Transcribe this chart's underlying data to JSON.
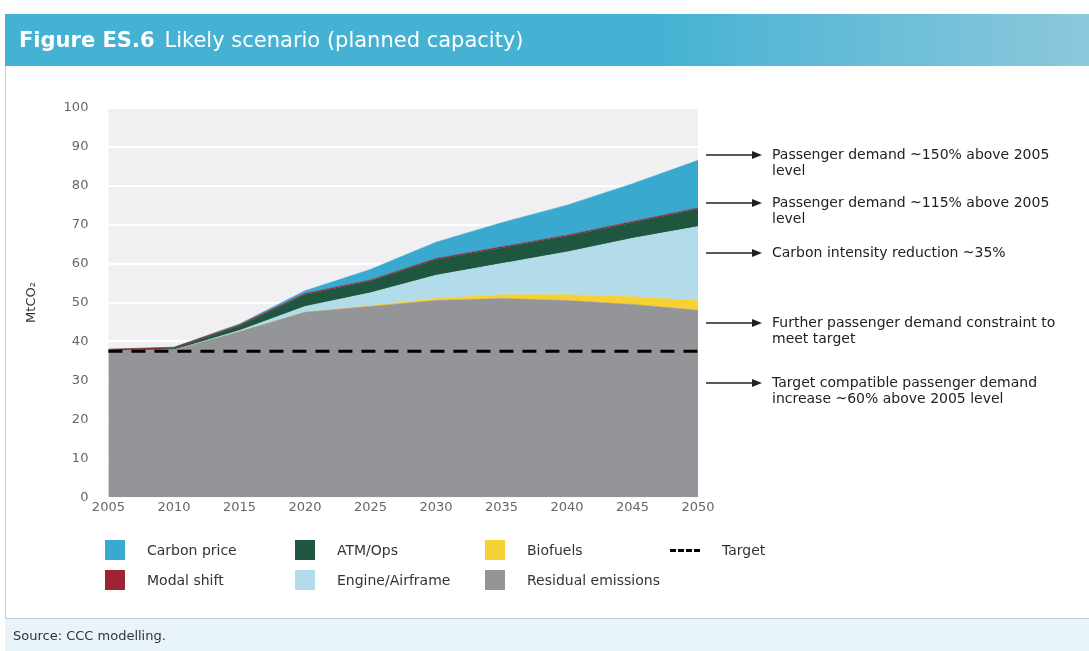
{
  "chart_data": {
    "type": "area",
    "title": "Figure ES.6",
    "subtitle": "Likely scenario (planned capacity)",
    "ylabel": "MtCO₂",
    "stacked": true,
    "x": [
      2005,
      2010,
      2015,
      2020,
      2025,
      2030,
      2035,
      2040,
      2045,
      2050
    ],
    "xlim": [
      2005,
      2050
    ],
    "xticks": [
      2005,
      2010,
      2015,
      2020,
      2025,
      2030,
      2035,
      2040,
      2045,
      2050
    ],
    "ylim": [
      0,
      100
    ],
    "yticks": [
      0,
      10,
      20,
      30,
      40,
      50,
      60,
      70,
      80,
      90,
      100
    ],
    "grid": "y",
    "legend": "bottom",
    "series": [
      {
        "name": "Residual emissions",
        "color": "#939598",
        "values": [
          37.5,
          37.8,
          42.5,
          47.5,
          49,
          50.5,
          51,
          50.5,
          49.5,
          48
        ]
      },
      {
        "name": "Biofuels",
        "color": "#f7d033",
        "values": [
          0,
          0,
          0,
          0,
          0.2,
          0.5,
          1,
          1.5,
          2,
          2.5
        ]
      },
      {
        "name": "Engine/Airframe",
        "color": "#b3dcea",
        "values": [
          0,
          0,
          0.3,
          1.5,
          3.3,
          6,
          8,
          11,
          15,
          19
        ]
      },
      {
        "name": "ATM/Ops",
        "color": "#1e5640",
        "values": [
          0.2,
          0.4,
          1.2,
          3,
          3,
          4,
          4,
          4,
          4,
          4.5
        ]
      },
      {
        "name": "Modal shift",
        "color": "#9b2335",
        "values": [
          0.3,
          0.3,
          0.3,
          0.3,
          0.3,
          0.3,
          0.3,
          0.3,
          0.3,
          0.3
        ]
      },
      {
        "name": "Carbon price",
        "color": "#3aa9cf",
        "values": [
          0,
          0,
          0.2,
          0.7,
          2.7,
          4.2,
          6.2,
          7.7,
          9.7,
          12.2
        ]
      }
    ],
    "ref_lines": [
      {
        "axis": "y",
        "value": 37.5,
        "label": "Target",
        "color": "#000000",
        "line_style": "dashed"
      }
    ],
    "annotations": [
      "Passenger demand ~150% above 2005 level",
      "Passenger demand ~115% above 2005 level",
      "Carbon intensity reduction ~35%",
      "Further passenger demand constraint to meet target",
      "Target compatible passenger demand increase ~60% above 2005 level",
      "Source: CCC modelling."
    ]
  }
}
